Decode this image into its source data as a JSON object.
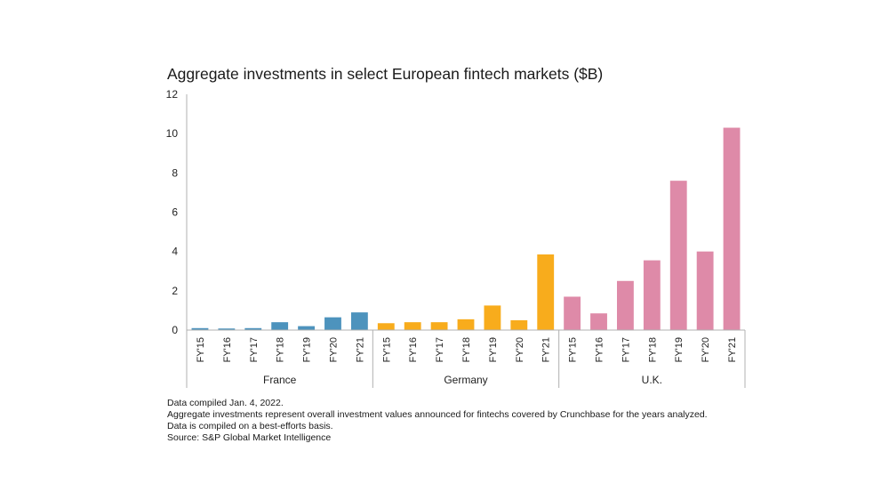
{
  "chart_data": {
    "type": "bar",
    "title": "Aggregate investments in select European fintech markets ($B)",
    "xlabel": "",
    "ylabel": "",
    "ylim": [
      0,
      12
    ],
    "yticks": [
      "0",
      "2",
      "4",
      "6",
      "8",
      "10",
      "12"
    ],
    "grid": false,
    "groups": [
      {
        "name": "France",
        "color": "#4d93bd",
        "categories": [
          "FY'15",
          "FY'16",
          "FY'17",
          "FY'18",
          "FY'19",
          "FY'20",
          "FY'21"
        ],
        "values": [
          0.1,
          0.08,
          0.1,
          0.4,
          0.2,
          0.65,
          0.9
        ]
      },
      {
        "name": "Germany",
        "color": "#f8ac1c",
        "categories": [
          "FY'15",
          "FY'16",
          "FY'17",
          "FY'18",
          "FY'19",
          "FY'20",
          "FY'21"
        ],
        "values": [
          0.35,
          0.4,
          0.4,
          0.55,
          1.25,
          0.5,
          3.85
        ]
      },
      {
        "name": "U.K.",
        "color": "#de8aa8",
        "categories": [
          "FY'15",
          "FY'16",
          "FY'17",
          "FY'18",
          "FY'19",
          "FY'20",
          "FY'21"
        ],
        "values": [
          1.7,
          0.85,
          2.5,
          3.55,
          7.6,
          4.0,
          10.3
        ]
      }
    ]
  },
  "notes": [
    "Data compiled Jan. 4, 2022.",
    "Aggregate investments represent overall investment values announced for fintechs covered by Crunchbase for the years analyzed.",
    "Data is compiled on a best-efforts basis.",
    "Source: S&P Global Market Intelligence"
  ]
}
